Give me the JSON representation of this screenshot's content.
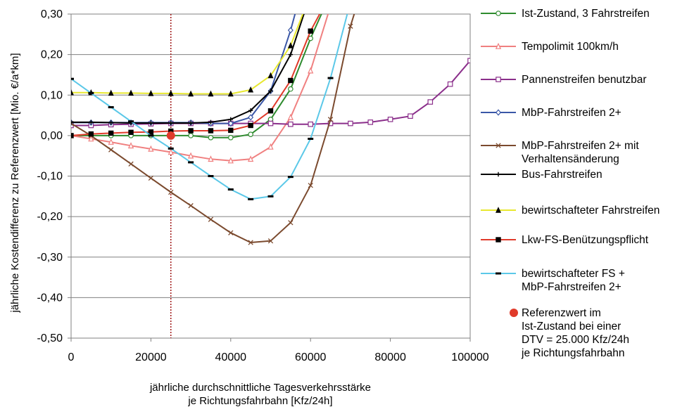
{
  "chart_data": {
    "type": "line",
    "title": "",
    "xlabel": [
      "jährliche durchschnittliche Tagesverkehrsstärke",
      "je Richtungsfahrbahn [Kfz/24h]"
    ],
    "ylabel": "jährliche Kostendifferenz zu Referenzwert [Mio. €/a*km]",
    "xlim": [
      0,
      100000
    ],
    "ylim": [
      -0.5,
      0.3
    ],
    "x_ticks": [
      "0",
      "20000",
      "40000",
      "60000",
      "80000",
      "100000"
    ],
    "y_ticks": [
      "0,30",
      "0,20",
      "0,10",
      "0,00",
      "-0,10",
      "-0,20",
      "-0,30",
      "-0,40",
      "-0,50"
    ],
    "grid": "horizontal",
    "legend_position": "right",
    "reference_line_x": 25000,
    "series": [
      {
        "name": "Ist-Zustand, 3 Fahrstreifen",
        "color": "#2e8b2e",
        "marker": "circle-open",
        "points": [
          [
            0,
            0.0
          ],
          [
            5000,
            0.0
          ],
          [
            10000,
            0.0
          ],
          [
            15000,
            0.0
          ],
          [
            20000,
            0.0
          ],
          [
            25000,
            0.0
          ],
          [
            30000,
            0.0
          ],
          [
            35000,
            -0.005
          ],
          [
            40000,
            -0.005
          ],
          [
            45000,
            0.003
          ],
          [
            50000,
            0.04
          ],
          [
            55000,
            0.115
          ],
          [
            60000,
            0.24
          ],
          [
            65000,
            0.35
          ]
        ]
      },
      {
        "name": "Tempolimit 100km/h",
        "color": "#f08080",
        "marker": "triangle-open",
        "points": [
          [
            0,
            0.0
          ],
          [
            5000,
            -0.008
          ],
          [
            10000,
            -0.016
          ],
          [
            15000,
            -0.025
          ],
          [
            20000,
            -0.033
          ],
          [
            25000,
            -0.041
          ],
          [
            30000,
            -0.05
          ],
          [
            35000,
            -0.058
          ],
          [
            40000,
            -0.062
          ],
          [
            45000,
            -0.058
          ],
          [
            50000,
            -0.028
          ],
          [
            55000,
            0.045
          ],
          [
            60000,
            0.16
          ],
          [
            65000,
            0.32
          ]
        ]
      },
      {
        "name": "Pannenstreifen benutzbar",
        "color": "#8b2f8b",
        "marker": "square-open",
        "points": [
          [
            0,
            0.025
          ],
          [
            5000,
            0.025
          ],
          [
            10000,
            0.027
          ],
          [
            15000,
            0.028
          ],
          [
            20000,
            0.029
          ],
          [
            25000,
            0.03
          ],
          [
            30000,
            0.03
          ],
          [
            35000,
            0.03
          ],
          [
            40000,
            0.03
          ],
          [
            45000,
            0.03
          ],
          [
            50000,
            0.03
          ],
          [
            55000,
            0.028
          ],
          [
            60000,
            0.028
          ],
          [
            65000,
            0.03
          ],
          [
            70000,
            0.03
          ],
          [
            75000,
            0.033
          ],
          [
            80000,
            0.04
          ],
          [
            85000,
            0.048
          ],
          [
            90000,
            0.083
          ],
          [
            95000,
            0.127
          ],
          [
            100000,
            0.185
          ]
        ]
      },
      {
        "name": "MbP-Fahrstreifen 2+",
        "color": "#3a57a7",
        "marker": "diamond-open",
        "points": [
          [
            0,
            0.032
          ],
          [
            5000,
            0.032
          ],
          [
            10000,
            0.032
          ],
          [
            15000,
            0.032
          ],
          [
            20000,
            0.032
          ],
          [
            25000,
            0.032
          ],
          [
            30000,
            0.032
          ],
          [
            35000,
            0.03
          ],
          [
            40000,
            0.03
          ],
          [
            45000,
            0.045
          ],
          [
            50000,
            0.11
          ],
          [
            55000,
            0.26
          ],
          [
            57500,
            0.35
          ]
        ]
      },
      {
        "name": "MbP-Fahrstreifen 2+ mit Verhaltensänderung",
        "color": "#7b4a2e",
        "marker": "x",
        "points": [
          [
            0,
            0.03
          ],
          [
            5000,
            0.0
          ],
          [
            10000,
            -0.035
          ],
          [
            15000,
            -0.07
          ],
          [
            20000,
            -0.105
          ],
          [
            25000,
            -0.14
          ],
          [
            30000,
            -0.173
          ],
          [
            35000,
            -0.207
          ],
          [
            40000,
            -0.24
          ],
          [
            45000,
            -0.264
          ],
          [
            50000,
            -0.26
          ],
          [
            55000,
            -0.215
          ],
          [
            60000,
            -0.123
          ],
          [
            65000,
            0.04
          ],
          [
            70000,
            0.27
          ],
          [
            72500,
            0.35
          ]
        ]
      },
      {
        "name": "Bus-Fahrstreifen",
        "color": "#000000",
        "marker": "plus",
        "points": [
          [
            0,
            0.033
          ],
          [
            5000,
            0.033
          ],
          [
            10000,
            0.032
          ],
          [
            15000,
            0.031
          ],
          [
            20000,
            0.031
          ],
          [
            25000,
            0.031
          ],
          [
            30000,
            0.031
          ],
          [
            35000,
            0.033
          ],
          [
            40000,
            0.04
          ],
          [
            45000,
            0.062
          ],
          [
            50000,
            0.11
          ],
          [
            55000,
            0.2
          ],
          [
            60000,
            0.35
          ]
        ]
      },
      {
        "name": "bewirtschafteter Fahrstreifen",
        "color": "#e8e830",
        "marker": "triangle-filled",
        "points": [
          [
            0,
            0.106
          ],
          [
            5000,
            0.106
          ],
          [
            10000,
            0.105
          ],
          [
            15000,
            0.105
          ],
          [
            20000,
            0.104
          ],
          [
            25000,
            0.104
          ],
          [
            30000,
            0.103
          ],
          [
            35000,
            0.103
          ],
          [
            40000,
            0.103
          ],
          [
            45000,
            0.113
          ],
          [
            50000,
            0.148
          ],
          [
            55000,
            0.222
          ],
          [
            60000,
            0.35
          ]
        ]
      },
      {
        "name": "Lkw-FS-Benützungspflicht",
        "color": "#e03a2a",
        "marker": "square-filled",
        "points": [
          [
            0,
            0.0
          ],
          [
            5000,
            0.004
          ],
          [
            10000,
            0.006
          ],
          [
            15000,
            0.008
          ],
          [
            20000,
            0.009
          ],
          [
            25000,
            0.011
          ],
          [
            30000,
            0.012
          ],
          [
            35000,
            0.012
          ],
          [
            40000,
            0.013
          ],
          [
            45000,
            0.025
          ],
          [
            50000,
            0.061
          ],
          [
            55000,
            0.136
          ],
          [
            60000,
            0.258
          ],
          [
            65000,
            0.35
          ]
        ]
      },
      {
        "name": "bewirtschafteter FS + MbP-Fahrstreifen 2+",
        "color": "#5bc8e8",
        "marker": "dash",
        "points": [
          [
            0,
            0.14
          ],
          [
            5000,
            0.105
          ],
          [
            10000,
            0.07
          ],
          [
            15000,
            0.035
          ],
          [
            20000,
            0.0
          ],
          [
            25000,
            -0.032
          ],
          [
            30000,
            -0.066
          ],
          [
            35000,
            -0.1
          ],
          [
            40000,
            -0.133
          ],
          [
            45000,
            -0.157
          ],
          [
            50000,
            -0.15
          ],
          [
            55000,
            -0.102
          ],
          [
            60000,
            -0.008
          ],
          [
            65000,
            0.142
          ],
          [
            70000,
            0.33
          ],
          [
            72000,
            0.35
          ]
        ]
      }
    ],
    "reference_point": {
      "name": "Referenzwert im Ist-Zustand bei einer DTV = 25.000 Kfz/24h je Richtungsfahrbahn",
      "x": 25000,
      "y": 0.0,
      "color": "#e03a2a"
    }
  },
  "legend": [
    {
      "lines": [
        "Ist-Zustand, 3 Fahrstreifen"
      ]
    },
    {
      "lines": [
        "Tempolimit 100km/h"
      ]
    },
    {
      "lines": [
        "Pannenstreifen benutzbar"
      ]
    },
    {
      "lines": [
        "MbP-Fahrstreifen 2+"
      ]
    },
    {
      "lines": [
        "MbP-Fahrstreifen 2+ mit",
        "Verhaltensänderung"
      ]
    },
    {
      "lines": [
        "Bus-Fahrstreifen"
      ]
    },
    {
      "lines": [
        "bewirtschafteter Fahrstreifen"
      ]
    },
    {
      "lines": [
        "Lkw-FS-Benützungspflicht"
      ]
    },
    {
      "lines": [
        "bewirtschafteter FS +",
        "MbP-Fahrstreifen 2+"
      ]
    },
    {
      "lines": [
        "Referenzwert im",
        "Ist-Zustand bei einer",
        "DTV = 25.000 Kfz/24h",
        "je Richtungsfahrbahn"
      ]
    }
  ]
}
